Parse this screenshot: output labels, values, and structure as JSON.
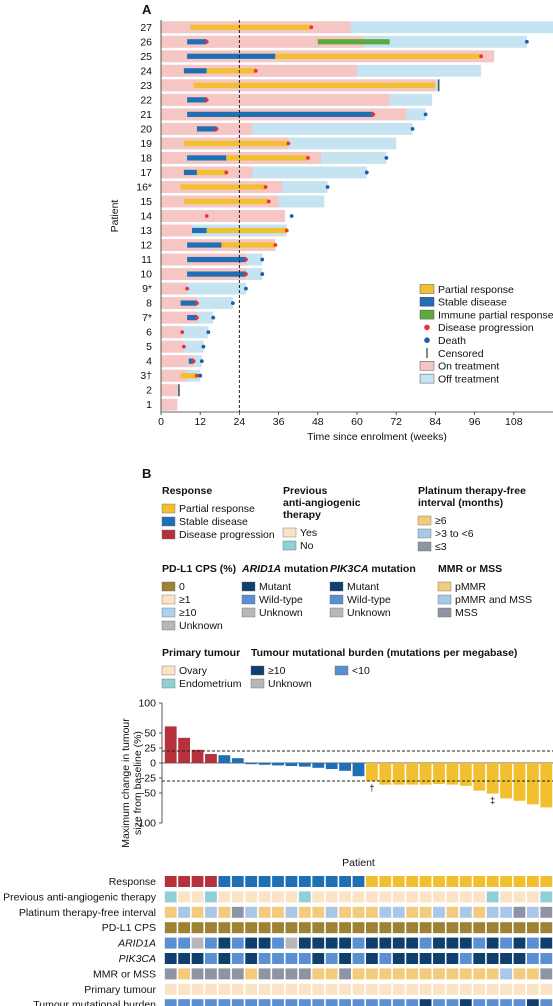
{
  "panel_a": {
    "label": "A",
    "chart_data": {
      "type": "swimmer",
      "ylabel": "Patient",
      "xlabel": "Time since enrolment (weeks)",
      "xlim": [
        0,
        120
      ],
      "xticks": [
        0,
        12,
        24,
        36,
        48,
        60,
        72,
        84,
        96,
        108
      ],
      "reference_line_x": 24,
      "patients": [
        {
          "label": "1",
          "on": 5,
          "off": 5,
          "resp": [],
          "pd": null,
          "death": null,
          "censored": null
        },
        {
          "label": "2",
          "on": 5,
          "off": 5.5,
          "resp": [],
          "pd": null,
          "death": null,
          "censored": 5.5
        },
        {
          "label": "3†",
          "on": 8,
          "off": 12,
          "resp": [
            [
              "PR",
              6,
              11
            ]
          ],
          "pd": 11,
          "death": 12,
          "censored": null
        },
        {
          "label": "4",
          "on": 10,
          "off": 12.5,
          "resp": [
            [
              "SD",
              8.5,
              10
            ]
          ],
          "pd": 10,
          "death": 12.5,
          "censored": null
        },
        {
          "label": "5",
          "on": 7,
          "off": 13,
          "resp": [],
          "pd": 7,
          "death": 13,
          "censored": null
        },
        {
          "label": "6",
          "on": 6.5,
          "off": 14.5,
          "resp": [],
          "pd": 6.5,
          "death": 14.5,
          "censored": null
        },
        {
          "label": "7*",
          "on": 11,
          "off": 16,
          "resp": [
            [
              "SD",
              8,
              11
            ]
          ],
          "pd": 11,
          "death": 16,
          "censored": null
        },
        {
          "label": "8",
          "on": 11,
          "off": 22,
          "resp": [
            [
              "SD",
              6,
              11
            ]
          ],
          "pd": 11,
          "death": 22,
          "censored": null
        },
        {
          "label": "9*",
          "on": 8,
          "off": 26,
          "resp": [],
          "pd": 8,
          "death": 26,
          "censored": null
        },
        {
          "label": "10",
          "on": 26,
          "off": 31,
          "resp": [
            [
              "SD",
              8,
              26
            ]
          ],
          "pd": 26,
          "death": 31,
          "censored": null
        },
        {
          "label": "11",
          "on": 26,
          "off": 31,
          "resp": [
            [
              "SD",
              8,
              26
            ]
          ],
          "pd": 26,
          "death": 31,
          "censored": null
        },
        {
          "label": "12",
          "on": 35,
          "off": 35,
          "resp": [
            [
              "SD",
              8,
              18.5
            ],
            [
              "PR",
              18.5,
              35
            ]
          ],
          "pd": 35,
          "death": null,
          "censored": null
        },
        {
          "label": "13",
          "on": 9.5,
          "off": 38.5,
          "resp": [
            [
              "SD",
              9.5,
              14
            ],
            [
              "PR",
              14,
              38.5
            ]
          ],
          "pd": 38.5,
          "death": null,
          "censored": null
        },
        {
          "label": "14",
          "on": 38,
          "off": 38,
          "resp": [],
          "pd": 14,
          "death": 40,
          "censored": null
        },
        {
          "label": "15",
          "on": 36,
          "off": 50,
          "resp": [
            [
              "PR",
              7,
              33
            ]
          ],
          "pd": 33,
          "death": null,
          "censored": null
        },
        {
          "label": "16*",
          "on": 37,
          "off": 51,
          "resp": [
            [
              "PR",
              6,
              32
            ]
          ],
          "pd": 32,
          "death": 51,
          "censored": null
        },
        {
          "label": "17",
          "on": 28,
          "off": 63,
          "resp": [
            [
              "SD",
              7,
              11
            ],
            [
              "PR",
              11,
              20
            ]
          ],
          "pd": 20,
          "death": 63,
          "censored": null
        },
        {
          "label": "18",
          "on": 49,
          "off": 69,
          "resp": [
            [
              "SD",
              8,
              20
            ],
            [
              "PR",
              20,
              45
            ]
          ],
          "pd": 45,
          "death": 69,
          "censored": null
        },
        {
          "label": "19",
          "on": 39,
          "off": 72,
          "resp": [
            [
              "PR",
              7,
              39
            ]
          ],
          "pd": 39,
          "death": null,
          "censored": null
        },
        {
          "label": "20",
          "on": 28,
          "off": 77,
          "resp": [
            [
              "SD",
              11,
              17
            ]
          ],
          "pd": 17,
          "death": 77,
          "censored": null
        },
        {
          "label": "21",
          "on": 75,
          "off": 81,
          "resp": [
            [
              "SD",
              8,
              65
            ]
          ],
          "pd": 65,
          "death": 81,
          "censored": null
        },
        {
          "label": "22",
          "on": 70,
          "off": 83,
          "resp": [
            [
              "SD",
              8,
              14
            ]
          ],
          "pd": 14,
          "death": null,
          "censored": null
        },
        {
          "label": "23",
          "on": 84,
          "off": 85,
          "resp": [
            [
              "PR",
              10,
              84
            ]
          ],
          "pd": null,
          "death": null,
          "censored": 85
        },
        {
          "label": "24",
          "on": 60,
          "off": 98,
          "resp": [
            [
              "SD",
              7,
              14
            ],
            [
              "PR",
              14,
              29
            ]
          ],
          "pd": 29,
          "death": null,
          "censored": null
        },
        {
          "label": "25",
          "on": 102,
          "off": 102,
          "resp": [
            [
              "SD",
              8,
              35
            ],
            [
              "PR",
              35,
              98
            ]
          ],
          "pd": 98,
          "death": null,
          "censored": null
        },
        {
          "label": "26",
          "on": 62,
          "off": 112,
          "resp": [
            [
              "SD",
              8,
              14
            ],
            [
              "IPR",
              48,
              70
            ]
          ],
          "pd": 14,
          "death": 112,
          "censored": null
        },
        {
          "label": "27",
          "on": 58,
          "off": 122,
          "resp": [
            [
              "PR",
              9,
              46
            ]
          ],
          "pd": 46,
          "death": null,
          "censored": null
        }
      ]
    },
    "legend": {
      "partial_response": "Partial response",
      "stable_disease": "Stable disease",
      "immune_partial_response": "Immune partial response",
      "disease_progression": "Disease progression",
      "death": "Death",
      "censored": "Censored",
      "on_treatment": "On treatment",
      "off_treatment": "Off treatment"
    },
    "colors": {
      "partial_response": "#f2bf2e",
      "stable_disease": "#1f6fb4",
      "immune_partial_response": "#5aab3c",
      "disease_progression": "#e8323c",
      "death": "#1d5ea8",
      "on_treatment": "#f5c6c4",
      "off_treatment": "#c5e3f1"
    }
  },
  "panel_b": {
    "label": "B",
    "legend_groups": [
      {
        "title": "Response",
        "items": [
          {
            "label": "Partial response",
            "color": "#f2bf2e"
          },
          {
            "label": "Stable disease",
            "color": "#1f6fb4"
          },
          {
            "label": "Disease progression",
            "color": "#b5323c"
          }
        ]
      },
      {
        "title": "Previous anti-angiogenic therapy",
        "items": [
          {
            "label": "Yes",
            "color": "#fbe3c6"
          },
          {
            "label": "No",
            "color": "#90cfd6"
          }
        ]
      },
      {
        "title": "Platinum therapy-free interval (months)",
        "items": [
          {
            "label": "≥6",
            "color": "#f3cb7c"
          },
          {
            "label": ">3 to <6",
            "color": "#a9c7e6"
          },
          {
            "label": "≤3",
            "color": "#8e94a3"
          }
        ]
      },
      {
        "title": "PD-L1 CPS (%)",
        "items": [
          {
            "label": "0",
            "color": "#9c8232"
          },
          {
            "label": "≥1",
            "color": "#fbe3c6"
          },
          {
            "label": "≥10",
            "color": "#a9d3ea"
          },
          {
            "label": "Unknown",
            "color": "#b7b7b7"
          }
        ]
      },
      {
        "title": "ARID1A mutation",
        "items": [
          {
            "label": "Mutant",
            "color": "#0f3f6d"
          },
          {
            "label": "Wild-type",
            "color": "#5a8fd2"
          },
          {
            "label": "Unknown",
            "color": "#b7b7b7"
          }
        ]
      },
      {
        "title": "PIK3CA mutation",
        "items": [
          {
            "label": "Mutant",
            "color": "#0f3f6d"
          },
          {
            "label": "Wild-type",
            "color": "#5a8fd2"
          },
          {
            "label": "Unknown",
            "color": "#b7b7b7"
          }
        ]
      },
      {
        "title": "MMR or MSS",
        "items": [
          {
            "label": "pMMR",
            "color": "#f3cb7c"
          },
          {
            "label": "pMMR and MSS",
            "color": "#a9c7e6"
          },
          {
            "label": "MSS",
            "color": "#8e94a3"
          }
        ]
      },
      {
        "title": "Primary tumour",
        "items": [
          {
            "label": "Ovary",
            "color": "#fbe3c6"
          },
          {
            "label": "Endometrium",
            "color": "#90cfd6"
          }
        ]
      },
      {
        "title": "Tumour mutational burden (mutations per megabase)",
        "items": [
          {
            "label": "≥10",
            "color": "#0f3f6d"
          },
          {
            "label": "<10",
            "color": "#5a8fd2"
          },
          {
            "label": "Unknown",
            "color": "#b7b7b7"
          }
        ]
      }
    ],
    "chart_data": {
      "type": "bar",
      "ylabel": "Maximum change in tumour size from baseline (%)",
      "xlabel": "Patient",
      "ylim": [
        -100,
        100
      ],
      "yticks": [
        100,
        50,
        25,
        0,
        -25,
        -50,
        -100
      ],
      "reference_lines_y": [
        20,
        -30
      ],
      "values": [
        61,
        42,
        22,
        15,
        13,
        8,
        -2,
        -3,
        -4,
        -5,
        -6,
        -8,
        -10,
        -13,
        -22,
        -30,
        -36,
        -36,
        -36,
        -36,
        -35,
        -36,
        -38,
        -46,
        -51,
        -59,
        -63,
        -69,
        -74
      ],
      "response": [
        "PD",
        "PD",
        "PD",
        "PD",
        "SD",
        "SD",
        "SD",
        "SD",
        "SD",
        "SD",
        "SD",
        "SD",
        "SD",
        "SD",
        "SD",
        "PR",
        "PR",
        "PR",
        "PR",
        "PR",
        "PR",
        "PR",
        "PR",
        "PR",
        "PR",
        "PR",
        "PR",
        "PR",
        "PR"
      ],
      "bar_annotations": [
        {
          "index": 15,
          "text": "†"
        },
        {
          "index": 24,
          "text": "‡"
        }
      ]
    },
    "heatmap": {
      "rows": [
        {
          "label": "Response",
          "italic": false
        },
        {
          "label": "Previous anti-angiogenic therapy",
          "italic": false
        },
        {
          "label": "Platinum therapy-free interval",
          "italic": false
        },
        {
          "label": "PD-L1 CPS",
          "italic": false
        },
        {
          "label": "ARID1A",
          "italic": true
        },
        {
          "label": "PIK3CA",
          "italic": true
        },
        {
          "label": "MMR or MSS",
          "italic": false
        },
        {
          "label": "Primary tumour",
          "italic": false
        },
        {
          "label": "Tumour mutational burden",
          "italic": false
        }
      ],
      "palette": {
        "PD": "#b5323c",
        "SD": "#1f6fb4",
        "PR": "#f2bf2e",
        "yes": "#fbe3c6",
        "no": "#90cfd6",
        "ge6": "#f3cb7c",
        "mid": "#a9c7e6",
        "le3": "#8e94a3",
        "cps0": "#9c8232",
        "cps1": "#fbe3c6",
        "cps10": "#a9d3ea",
        "mut": "#0f3f6d",
        "wt": "#5a8fd2",
        "unk": "#b7b7b7",
        "pmmr": "#f3cb7c",
        "pmmrmss": "#a9c7e6",
        "mss": "#8e94a3",
        "ovary": "#fbe3c6",
        "endo": "#90cfd6"
      },
      "cells": [
        [
          "PD",
          "PD",
          "PD",
          "PD",
          "SD",
          "SD",
          "SD",
          "SD",
          "SD",
          "SD",
          "SD",
          "SD",
          "SD",
          "SD",
          "SD",
          "PR",
          "PR",
          "PR",
          "PR",
          "PR",
          "PR",
          "PR",
          "PR",
          "PR",
          "PR",
          "PR",
          "PR",
          "PR",
          "PR"
        ],
        [
          "no",
          "yes",
          "yes",
          "no",
          "yes",
          "yes",
          "yes",
          "yes",
          "yes",
          "yes",
          "no",
          "yes",
          "yes",
          "yes",
          "yes",
          "yes",
          "yes",
          "yes",
          "yes",
          "yes",
          "yes",
          "yes",
          "yes",
          "yes",
          "no",
          "yes",
          "yes",
          "yes",
          "no"
        ],
        [
          "ge6",
          "mid",
          "ge6",
          "mid",
          "ge6",
          "le3",
          "mid",
          "ge6",
          "ge6",
          "mid",
          "ge6",
          "ge6",
          "mid",
          "ge6",
          "ge6",
          "ge6",
          "mid",
          "mid",
          "ge6",
          "ge6",
          "mid",
          "ge6",
          "mid",
          "ge6",
          "mid",
          "mid",
          "le3",
          "mid",
          "le3"
        ],
        [
          "cps0",
          "cps0",
          "cps0",
          "cps0",
          "cps0",
          "cps0",
          "cps0",
          "cps0",
          "cps0",
          "cps0",
          "cps0",
          "cps0",
          "cps0",
          "cps0",
          "cps0",
          "cps0",
          "cps0",
          "cps0",
          "cps0",
          "cps0",
          "cps0",
          "cps0",
          "cps0",
          "cps0",
          "cps0",
          "cps0",
          "cps0",
          "cps0",
          "cps0"
        ],
        [
          "wt",
          "wt",
          "unk",
          "wt",
          "mut",
          "wt",
          "mut",
          "mut",
          "wt",
          "unk",
          "mut",
          "mut",
          "mut",
          "mut",
          "wt",
          "mut",
          "mut",
          "mut",
          "mut",
          "wt",
          "mut",
          "mut",
          "mut",
          "wt",
          "mut",
          "wt",
          "mut",
          "wt",
          "mut"
        ],
        [
          "mut",
          "mut",
          "mut",
          "wt",
          "mut",
          "wt",
          "mut",
          "wt",
          "wt",
          "wt",
          "wt",
          "mut",
          "wt",
          "mut",
          "wt",
          "mut",
          "wt",
          "mut",
          "mut",
          "mut",
          "mut",
          "mut",
          "wt",
          "mut",
          "mut",
          "mut",
          "mut",
          "wt",
          "wt"
        ],
        [
          "mss",
          "pmmr",
          "mss",
          "mss",
          "mss",
          "mss",
          "pmmr",
          "mss",
          "mss",
          "mss",
          "mss",
          "pmmr",
          "pmmr",
          "mss",
          "pmmr",
          "pmmr",
          "pmmr",
          "pmmr",
          "pmmr",
          "pmmr",
          "pmmr",
          "pmmr",
          "pmmr",
          "pmmr",
          "pmmr",
          "pmmrmss",
          "pmmr",
          "pmmr",
          "mss"
        ],
        [
          "ovary",
          "ovary",
          "ovary",
          "ovary",
          "ovary",
          "ovary",
          "ovary",
          "ovary",
          "ovary",
          "ovary",
          "ovary",
          "ovary",
          "ovary",
          "ovary",
          "ovary",
          "ovary",
          "ovary",
          "ovary",
          "ovary",
          "ovary",
          "ovary",
          "ovary",
          "ovary",
          "ovary",
          "ovary",
          "ovary",
          "ovary",
          "ovary",
          "ovary"
        ],
        [
          "wt",
          "wt",
          "wt",
          "wt",
          "wt",
          "wt",
          "wt",
          "wt",
          "wt",
          "wt",
          "wt",
          "wt",
          "wt",
          "wt",
          "wt",
          "wt",
          "wt",
          "wt",
          "wt",
          "mut",
          "wt",
          "wt",
          "mut",
          "wt",
          "wt",
          "wt",
          "wt",
          "mut",
          "wt"
        ]
      ]
    }
  }
}
